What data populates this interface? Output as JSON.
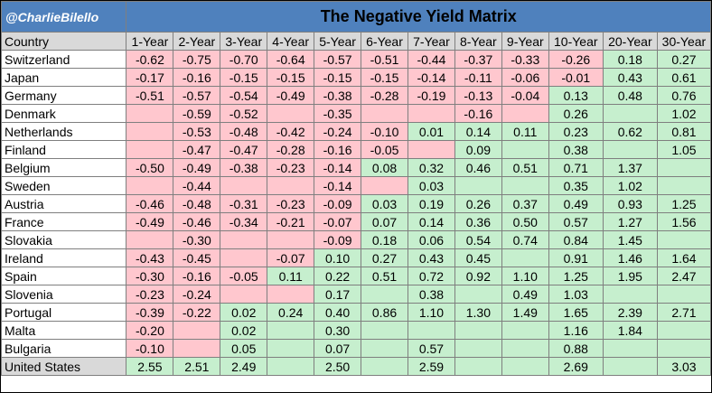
{
  "header": {
    "handle": "@CharlieBilello",
    "title": "The Negative Yield Matrix"
  },
  "colors": {
    "header_blue": "#4f81bd",
    "negative_fill": "#ffc7ce",
    "positive_fill": "#c6efce",
    "header_gray": "#d9d9d9"
  },
  "columns": [
    "Country",
    "1-Year",
    "2-Year",
    "3-Year",
    "4-Year",
    "5-Year",
    "6-Year",
    "7-Year",
    "8-Year",
    "9-Year",
    "10-Year",
    "20-Year",
    "30-Year"
  ],
  "rows": [
    {
      "country": "Switzerland",
      "values": [
        "-0.62",
        "-0.75",
        "-0.70",
        "-0.64",
        "-0.57",
        "-0.51",
        "-0.44",
        "-0.37",
        "-0.33",
        "-0.26",
        "0.18",
        "0.27"
      ]
    },
    {
      "country": "Japan",
      "values": [
        "-0.17",
        "-0.16",
        "-0.15",
        "-0.15",
        "-0.15",
        "-0.15",
        "-0.14",
        "-0.11",
        "-0.06",
        "-0.01",
        "0.43",
        "0.61"
      ]
    },
    {
      "country": "Germany",
      "values": [
        "-0.51",
        "-0.57",
        "-0.54",
        "-0.49",
        "-0.38",
        "-0.28",
        "-0.19",
        "-0.13",
        "-0.04",
        "0.13",
        "0.48",
        "0.76"
      ]
    },
    {
      "country": "Denmark",
      "values": [
        "",
        "-0.59",
        "-0.52",
        "",
        "-0.35",
        "",
        "",
        "-0.16",
        "",
        "0.26",
        "",
        "1.02"
      ]
    },
    {
      "country": "Netherlands",
      "values": [
        "",
        "-0.53",
        "-0.48",
        "-0.42",
        "-0.24",
        "-0.10",
        "0.01",
        "0.14",
        "0.11",
        "0.23",
        "0.62",
        "0.81"
      ]
    },
    {
      "country": "Finland",
      "values": [
        "",
        "-0.47",
        "-0.47",
        "-0.28",
        "-0.16",
        "-0.05",
        "",
        "0.09",
        "",
        "0.38",
        "",
        "1.05"
      ]
    },
    {
      "country": "Belgium",
      "values": [
        "-0.50",
        "-0.49",
        "-0.38",
        "-0.23",
        "-0.14",
        "0.08",
        "0.32",
        "0.46",
        "0.51",
        "0.71",
        "1.37",
        ""
      ]
    },
    {
      "country": "Sweden",
      "values": [
        "",
        "-0.44",
        "",
        "",
        "-0.14",
        "",
        "0.03",
        "",
        "",
        "0.35",
        "1.02",
        ""
      ]
    },
    {
      "country": "Austria",
      "values": [
        "-0.46",
        "-0.48",
        "-0.31",
        "-0.23",
        "-0.09",
        "0.03",
        "0.19",
        "0.26",
        "0.37",
        "0.49",
        "0.93",
        "1.25"
      ]
    },
    {
      "country": "France",
      "values": [
        "-0.49",
        "-0.46",
        "-0.34",
        "-0.21",
        "-0.07",
        "0.07",
        "0.14",
        "0.36",
        "0.50",
        "0.57",
        "1.27",
        "1.56"
      ]
    },
    {
      "country": "Slovakia",
      "values": [
        "",
        "-0.30",
        "",
        "",
        "-0.09",
        "0.18",
        "0.06",
        "0.54",
        "0.74",
        "0.84",
        "1.45",
        ""
      ]
    },
    {
      "country": "Ireland",
      "values": [
        "-0.43",
        "-0.45",
        "",
        "-0.07",
        "0.10",
        "0.27",
        "0.43",
        "0.45",
        "",
        "0.91",
        "1.46",
        "1.64"
      ]
    },
    {
      "country": "Spain",
      "values": [
        "-0.30",
        "-0.16",
        "-0.05",
        "0.11",
        "0.22",
        "0.51",
        "0.72",
        "0.92",
        "1.10",
        "1.25",
        "1.95",
        "2.47"
      ]
    },
    {
      "country": "Slovenia",
      "values": [
        "-0.23",
        "-0.24",
        "",
        "",
        "0.17",
        "",
        "0.38",
        "",
        "0.49",
        "1.03",
        "",
        ""
      ]
    },
    {
      "country": "Portugal",
      "values": [
        "-0.39",
        "-0.22",
        "0.02",
        "0.24",
        "0.40",
        "0.86",
        "1.10",
        "1.30",
        "1.49",
        "1.65",
        "2.39",
        "2.71"
      ]
    },
    {
      "country": "Malta",
      "values": [
        "-0.20",
        "",
        "0.02",
        "",
        "0.30",
        "",
        "",
        "",
        "",
        "1.16",
        "1.84",
        ""
      ]
    },
    {
      "country": "Bulgaria",
      "values": [
        "-0.10",
        "",
        "0.05",
        "",
        "0.07",
        "",
        "0.57",
        "",
        "",
        "0.88",
        "",
        ""
      ]
    },
    {
      "country": "United States",
      "values": [
        "2.55",
        "2.51",
        "2.49",
        "",
        "2.50",
        "",
        "2.59",
        "",
        "",
        "2.69",
        "",
        "3.03"
      ]
    }
  ]
}
